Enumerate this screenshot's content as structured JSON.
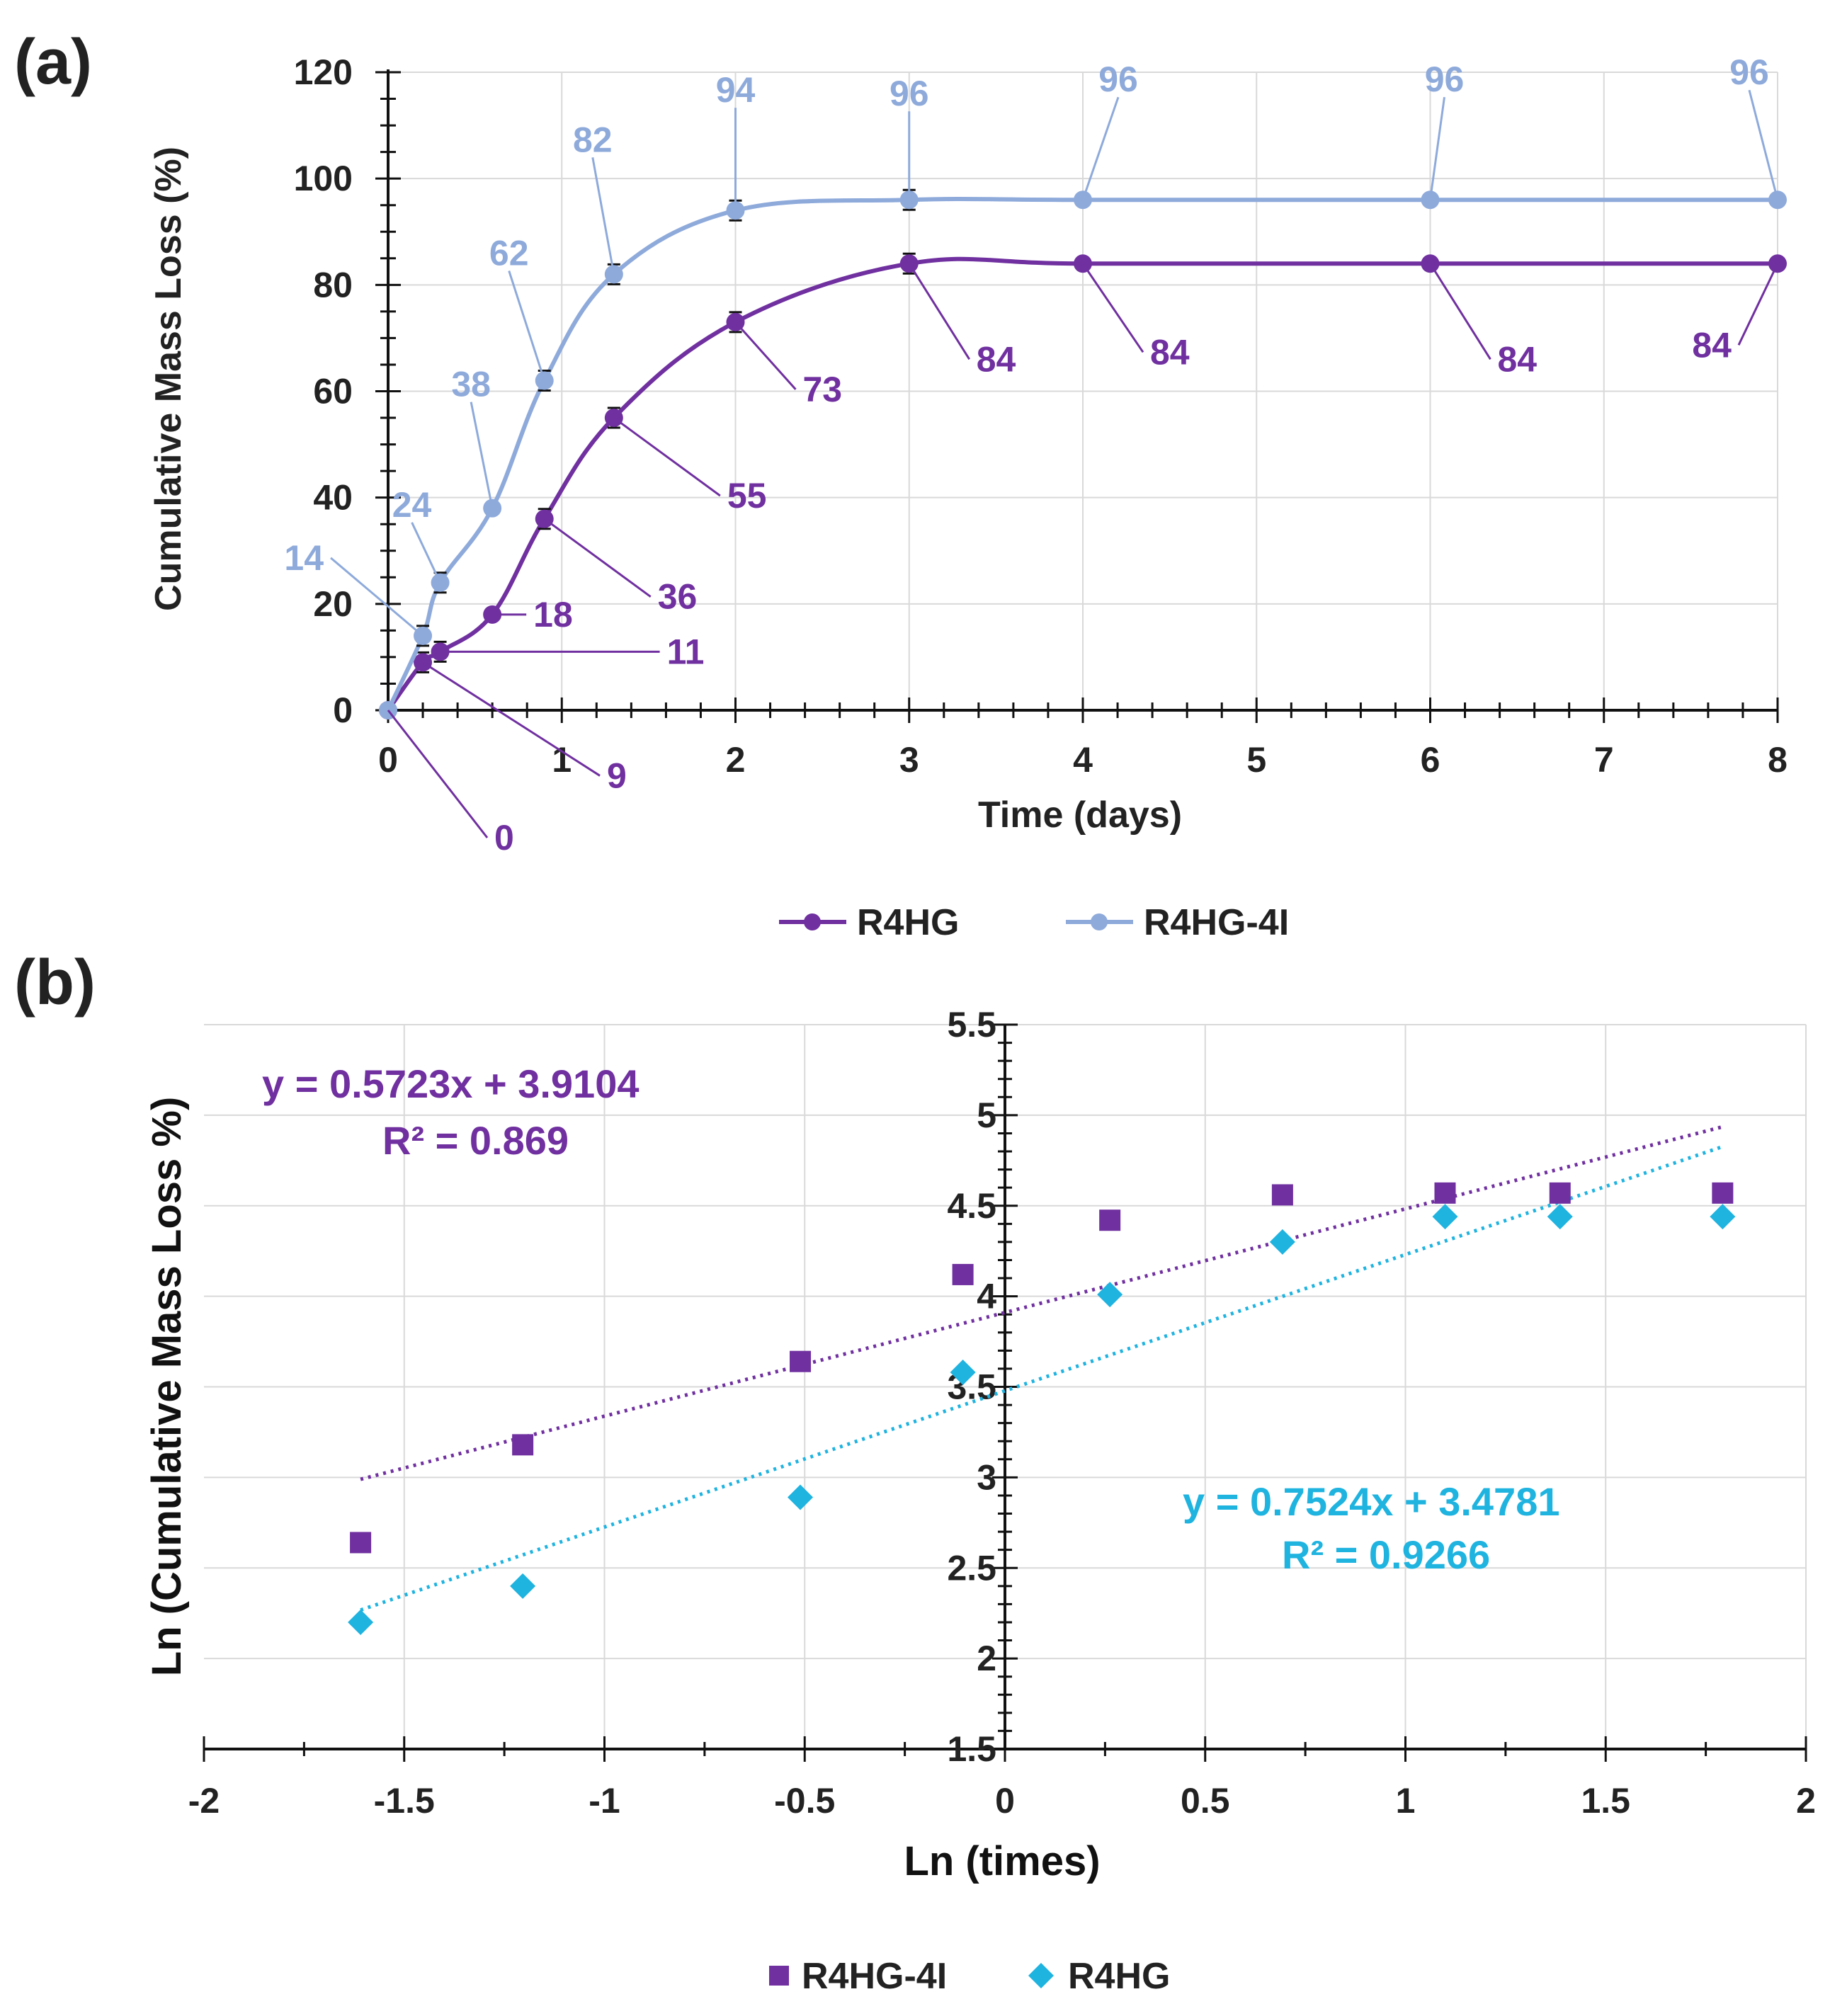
{
  "chart_data": [
    {
      "panel": "(a)",
      "type": "line",
      "xlabel": "Time (days)",
      "ylabel": "Cumulative Mass Loss (%)",
      "xlim": [
        0,
        8
      ],
      "ylim": [
        0,
        120
      ],
      "x_ticks": [
        "0",
        "1",
        "2",
        "3",
        "4",
        "5",
        "6",
        "7",
        "8"
      ],
      "y_ticks": [
        "0",
        "20",
        "40",
        "60",
        "80",
        "100",
        "120"
      ],
      "grid": true,
      "legend_position": "bottom",
      "series": [
        {
          "name": "R4HG",
          "color": "#7030a0",
          "x": [
            0,
            0.2,
            0.3,
            0.6,
            0.9,
            1.3,
            2,
            3,
            4,
            6,
            8
          ],
          "values": [
            0,
            9,
            11,
            18,
            36,
            55,
            73,
            84,
            84,
            84,
            84
          ],
          "labels": [
            "0",
            "9",
            "11",
            "18",
            "36",
            "55",
            "73",
            "84",
            "84",
            "84",
            "84"
          ]
        },
        {
          "name": "R4HG-4I",
          "color": "#8eaadb",
          "x": [
            0,
            0.2,
            0.3,
            0.6,
            0.9,
            1.3,
            2,
            3,
            4,
            6,
            8
          ],
          "values": [
            0,
            14,
            24,
            38,
            62,
            82,
            94,
            96,
            96,
            96,
            96
          ],
          "labels": [
            "",
            "14",
            "24",
            "38",
            "62",
            "82",
            "94",
            "96",
            "96",
            "96",
            "96"
          ]
        }
      ]
    },
    {
      "panel": "(b)",
      "type": "scatter",
      "xlabel": "Ln (times)",
      "ylabel": "Ln (Cumulative Mass Loss %)",
      "xlim": [
        -2,
        2
      ],
      "ylim": [
        1.5,
        5.5
      ],
      "x_ticks": [
        "-2",
        "-1.5",
        "-1",
        "-0.5",
        "0",
        "0.5",
        "1",
        "1.5",
        "2"
      ],
      "y_ticks": [
        "1.5",
        "2",
        "2.5",
        "3",
        "3.5",
        "4",
        "4.5",
        "5",
        "5.5"
      ],
      "grid": true,
      "legend_position": "bottom",
      "series": [
        {
          "name": "R4HG-4I",
          "color": "#7030a0",
          "marker": "square",
          "x": [
            -1.609,
            -1.204,
            -0.511,
            -0.105,
            0.262,
            0.693,
            1.099,
            1.386,
            1.792
          ],
          "values": [
            2.64,
            3.18,
            3.64,
            4.12,
            4.42,
            4.56,
            4.57,
            4.57,
            4.57
          ],
          "trendline": {
            "slope": 0.5723,
            "intercept": 3.9104,
            "equation": "y = 0.5723x + 3.9104",
            "r2": "R² = 0.869"
          }
        },
        {
          "name": "R4HG",
          "color": "#1fb3e0",
          "marker": "diamond",
          "x": [
            -1.609,
            -1.204,
            -0.511,
            -0.105,
            0.262,
            0.693,
            1.099,
            1.386,
            1.792
          ],
          "values": [
            2.2,
            2.4,
            2.89,
            3.58,
            4.01,
            4.3,
            4.44,
            4.44,
            4.44
          ],
          "trendline": {
            "slope": 0.7524,
            "intercept": 3.4781,
            "equation": "y = 0.7524x + 3.4781",
            "r2": "R² = 0.9266"
          }
        }
      ]
    }
  ]
}
